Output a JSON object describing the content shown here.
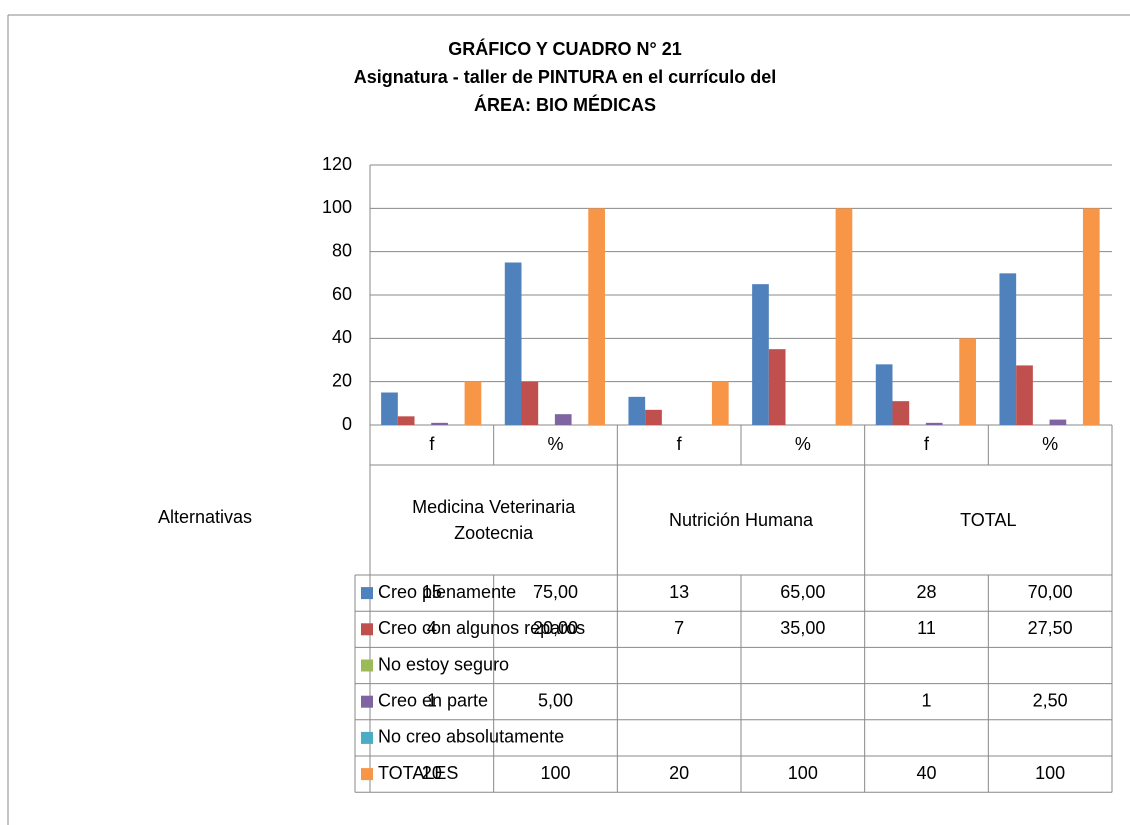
{
  "chart_data": {
    "type": "bar",
    "title": [
      "GRÁFICO Y CUADRO N° 21",
      "Asignatura - taller de PINTURA en el currículo del",
      "ÁREA: BIO MÉDICAS"
    ],
    "table_header": "Alternativas",
    "categories": [
      "f",
      "%",
      "f",
      "%",
      "f",
      "%"
    ],
    "groups": [
      "Medicina Veterinaria Zootecnia",
      "Nutrición Humana",
      "TOTAL"
    ],
    "ylim": [
      0,
      120
    ],
    "yticks": [
      0,
      20,
      40,
      60,
      80,
      100,
      120
    ],
    "grid": true,
    "series": [
      {
        "name": "Creo plenamente",
        "color": "#4f81bd",
        "values": [
          15,
          75,
          13,
          65,
          28,
          70
        ],
        "value_labels": [
          "15",
          "75,00",
          "13",
          "65,00",
          "28",
          "70,00"
        ]
      },
      {
        "name": "Creo con algunos reparos",
        "color": "#c0504d",
        "values": [
          4,
          20,
          7,
          35,
          11,
          27.5
        ],
        "value_labels": [
          "4",
          "20,00",
          "7",
          "35,00",
          "11",
          "27,50"
        ]
      },
      {
        "name": "No estoy seguro",
        "color": "#9bbb59",
        "values": [
          null,
          null,
          null,
          null,
          null,
          null
        ]
      },
      {
        "name": "Creo en parte",
        "color": "#8064a2",
        "values": [
          1,
          5,
          null,
          null,
          1,
          2.5
        ],
        "value_labels": [
          "1",
          "5,00",
          null,
          null,
          "1",
          "2,50"
        ]
      },
      {
        "name": "No creo absolutamente",
        "color": "#4bacc6",
        "values": [
          null,
          null,
          null,
          null,
          null,
          null
        ]
      },
      {
        "name": "TOTALES",
        "color": "#f79646",
        "values": [
          20,
          100,
          20,
          100,
          40,
          100
        ],
        "value_labels": [
          "20",
          "100",
          "20",
          "100",
          "40",
          "100"
        ]
      }
    ]
  }
}
